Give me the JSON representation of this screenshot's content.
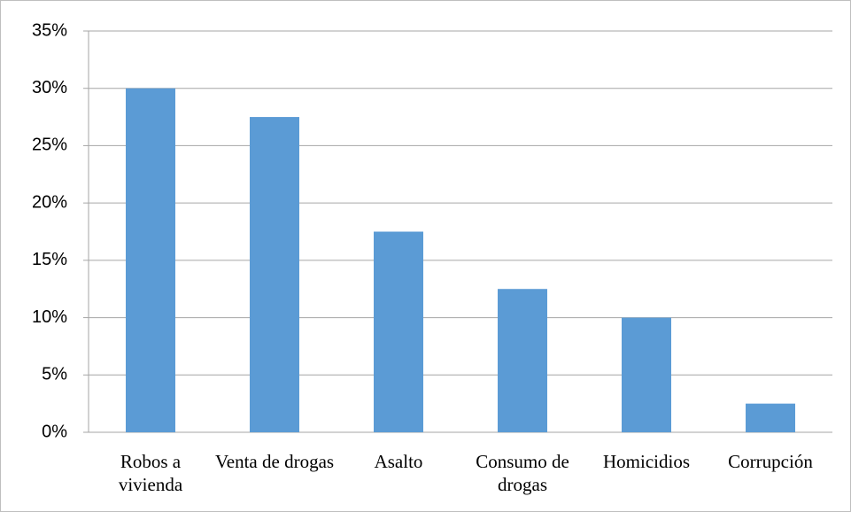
{
  "chart_data": {
    "type": "bar",
    "categories": [
      "Robos a vivienda",
      "Venta de drogas",
      "Asalto",
      "Consumo de drogas",
      "Homicidios",
      "Corrupción"
    ],
    "values": [
      30,
      27.5,
      17.5,
      12.5,
      10,
      2.5
    ],
    "color": "#5b9bd5",
    "ylim": [
      0,
      35
    ],
    "yticks": [
      {
        "value": 0,
        "label": "0%"
      },
      {
        "value": 5,
        "label": "5%"
      },
      {
        "value": 10,
        "label": "10%"
      },
      {
        "value": 15,
        "label": "15%"
      },
      {
        "value": 20,
        "label": "20%"
      },
      {
        "value": 25,
        "label": "25%"
      },
      {
        "value": 30,
        "label": "30%"
      },
      {
        "value": 35,
        "label": "35%"
      }
    ],
    "grid": true
  }
}
